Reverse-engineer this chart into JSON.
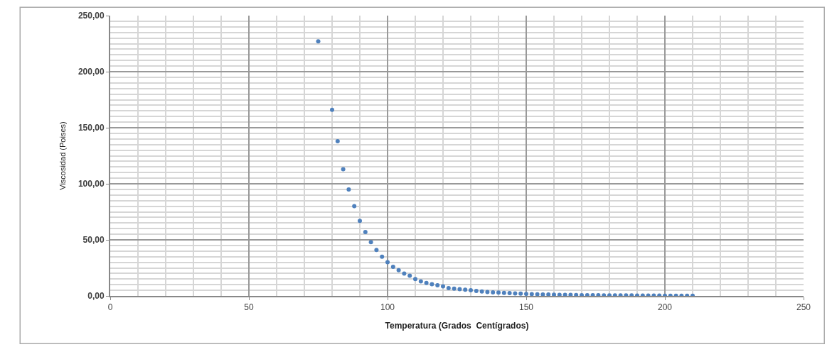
{
  "chart_data": {
    "type": "scatter",
    "xlabel": "Temperatura (Grados  Centígrados)",
    "ylabel": "Viscosidad (Poises)",
    "x": [
      75,
      80,
      82,
      84,
      86,
      88,
      90,
      92,
      94,
      96,
      98,
      100,
      102,
      104,
      106,
      108,
      110,
      112,
      114,
      116,
      118,
      120,
      122,
      124,
      126,
      128,
      130,
      132,
      134,
      136,
      138,
      140,
      142,
      144,
      146,
      148,
      150,
      152,
      154,
      156,
      158,
      160,
      162,
      164,
      166,
      168,
      170,
      172,
      174,
      176,
      178,
      180,
      182,
      184,
      186,
      188,
      190,
      192,
      194,
      196,
      198,
      200,
      202,
      204,
      206,
      208,
      210
    ],
    "values": [
      227,
      166,
      138,
      113,
      95,
      80,
      67,
      57,
      48,
      41,
      35,
      30,
      26,
      23,
      20,
      18,
      15,
      13,
      11.5,
      10.5,
      9.5,
      8.5,
      7,
      6.5,
      6,
      5.5,
      5,
      4.5,
      4,
      3.5,
      3.2,
      3,
      2.7,
      2.5,
      2.2,
      2,
      1.8,
      1.6,
      1.5,
      1.3,
      1.2,
      1.1,
      1,
      0.9,
      0.9,
      0.8,
      0.7,
      0.7,
      0.6,
      0.6,
      0.5,
      0.5,
      0.5,
      0.4,
      0.4,
      0.4,
      0.3,
      0.3,
      0.3,
      0.3,
      0.3,
      0.2,
      0.2,
      0.2,
      0.2,
      0.2,
      0.2
    ],
    "color": "#4f81bd",
    "marker": "circle",
    "grid": true,
    "xlim": [
      0,
      250
    ],
    "xticks": [
      0,
      50,
      100,
      150,
      200,
      250
    ],
    "ylim": [
      0,
      250
    ],
    "yticks": [
      {
        "value": 0,
        "label": "0,00"
      },
      {
        "value": 50,
        "label": "50,00"
      },
      {
        "value": 100,
        "label": "100,00"
      },
      {
        "value": 150,
        "label": "150,00"
      },
      {
        "value": 200,
        "label": "200,00"
      },
      {
        "value": 250,
        "label": "250,00"
      }
    ]
  }
}
